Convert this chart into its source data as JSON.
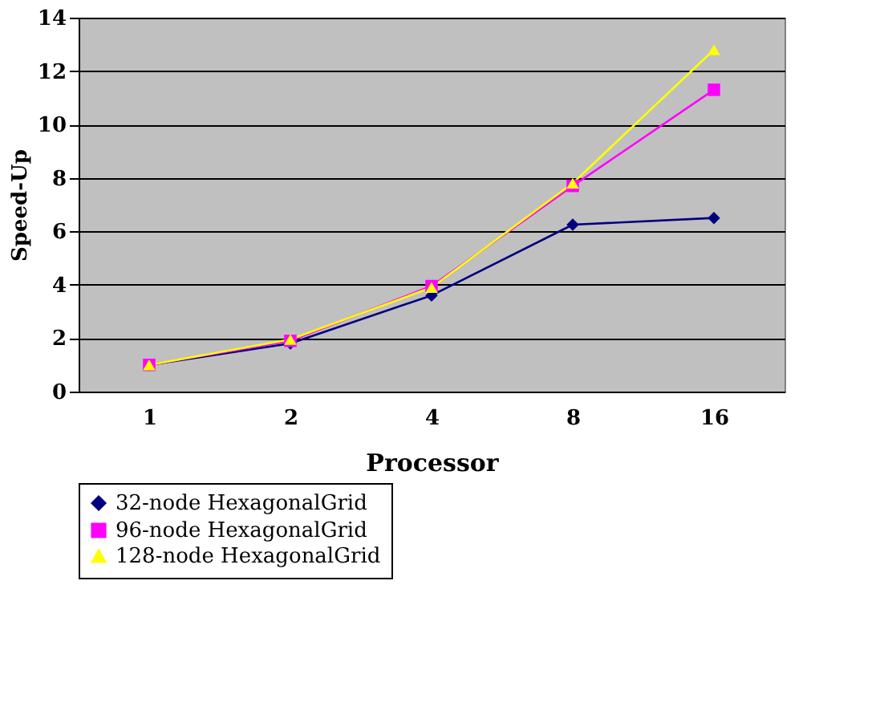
{
  "chart_data": {
    "type": "line",
    "xlabel": "Processor",
    "ylabel": "Speed-Up",
    "categories": [
      "1",
      "2",
      "4",
      "8",
      "16"
    ],
    "ylim": [
      0,
      14
    ],
    "yticks": [
      0,
      2,
      4,
      6,
      8,
      10,
      12,
      14
    ],
    "grid": "y",
    "legend": "bottom",
    "line_style": "solid",
    "series": [
      {
        "name": "32-node HexagonalGrid",
        "color": "#000080",
        "marker": "diamond",
        "values": [
          1,
          1.8,
          3.6,
          6.25,
          6.5
        ]
      },
      {
        "name": "96-node HexagonalGrid",
        "color": "#ff00ff",
        "marker": "square",
        "values": [
          1,
          1.9,
          3.95,
          7.7,
          11.3
        ]
      },
      {
        "name": "128-node HexagonalGrid",
        "color": "#ffff00",
        "marker": "triangle",
        "values": [
          1,
          1.95,
          3.9,
          7.8,
          12.8
        ]
      }
    ]
  }
}
